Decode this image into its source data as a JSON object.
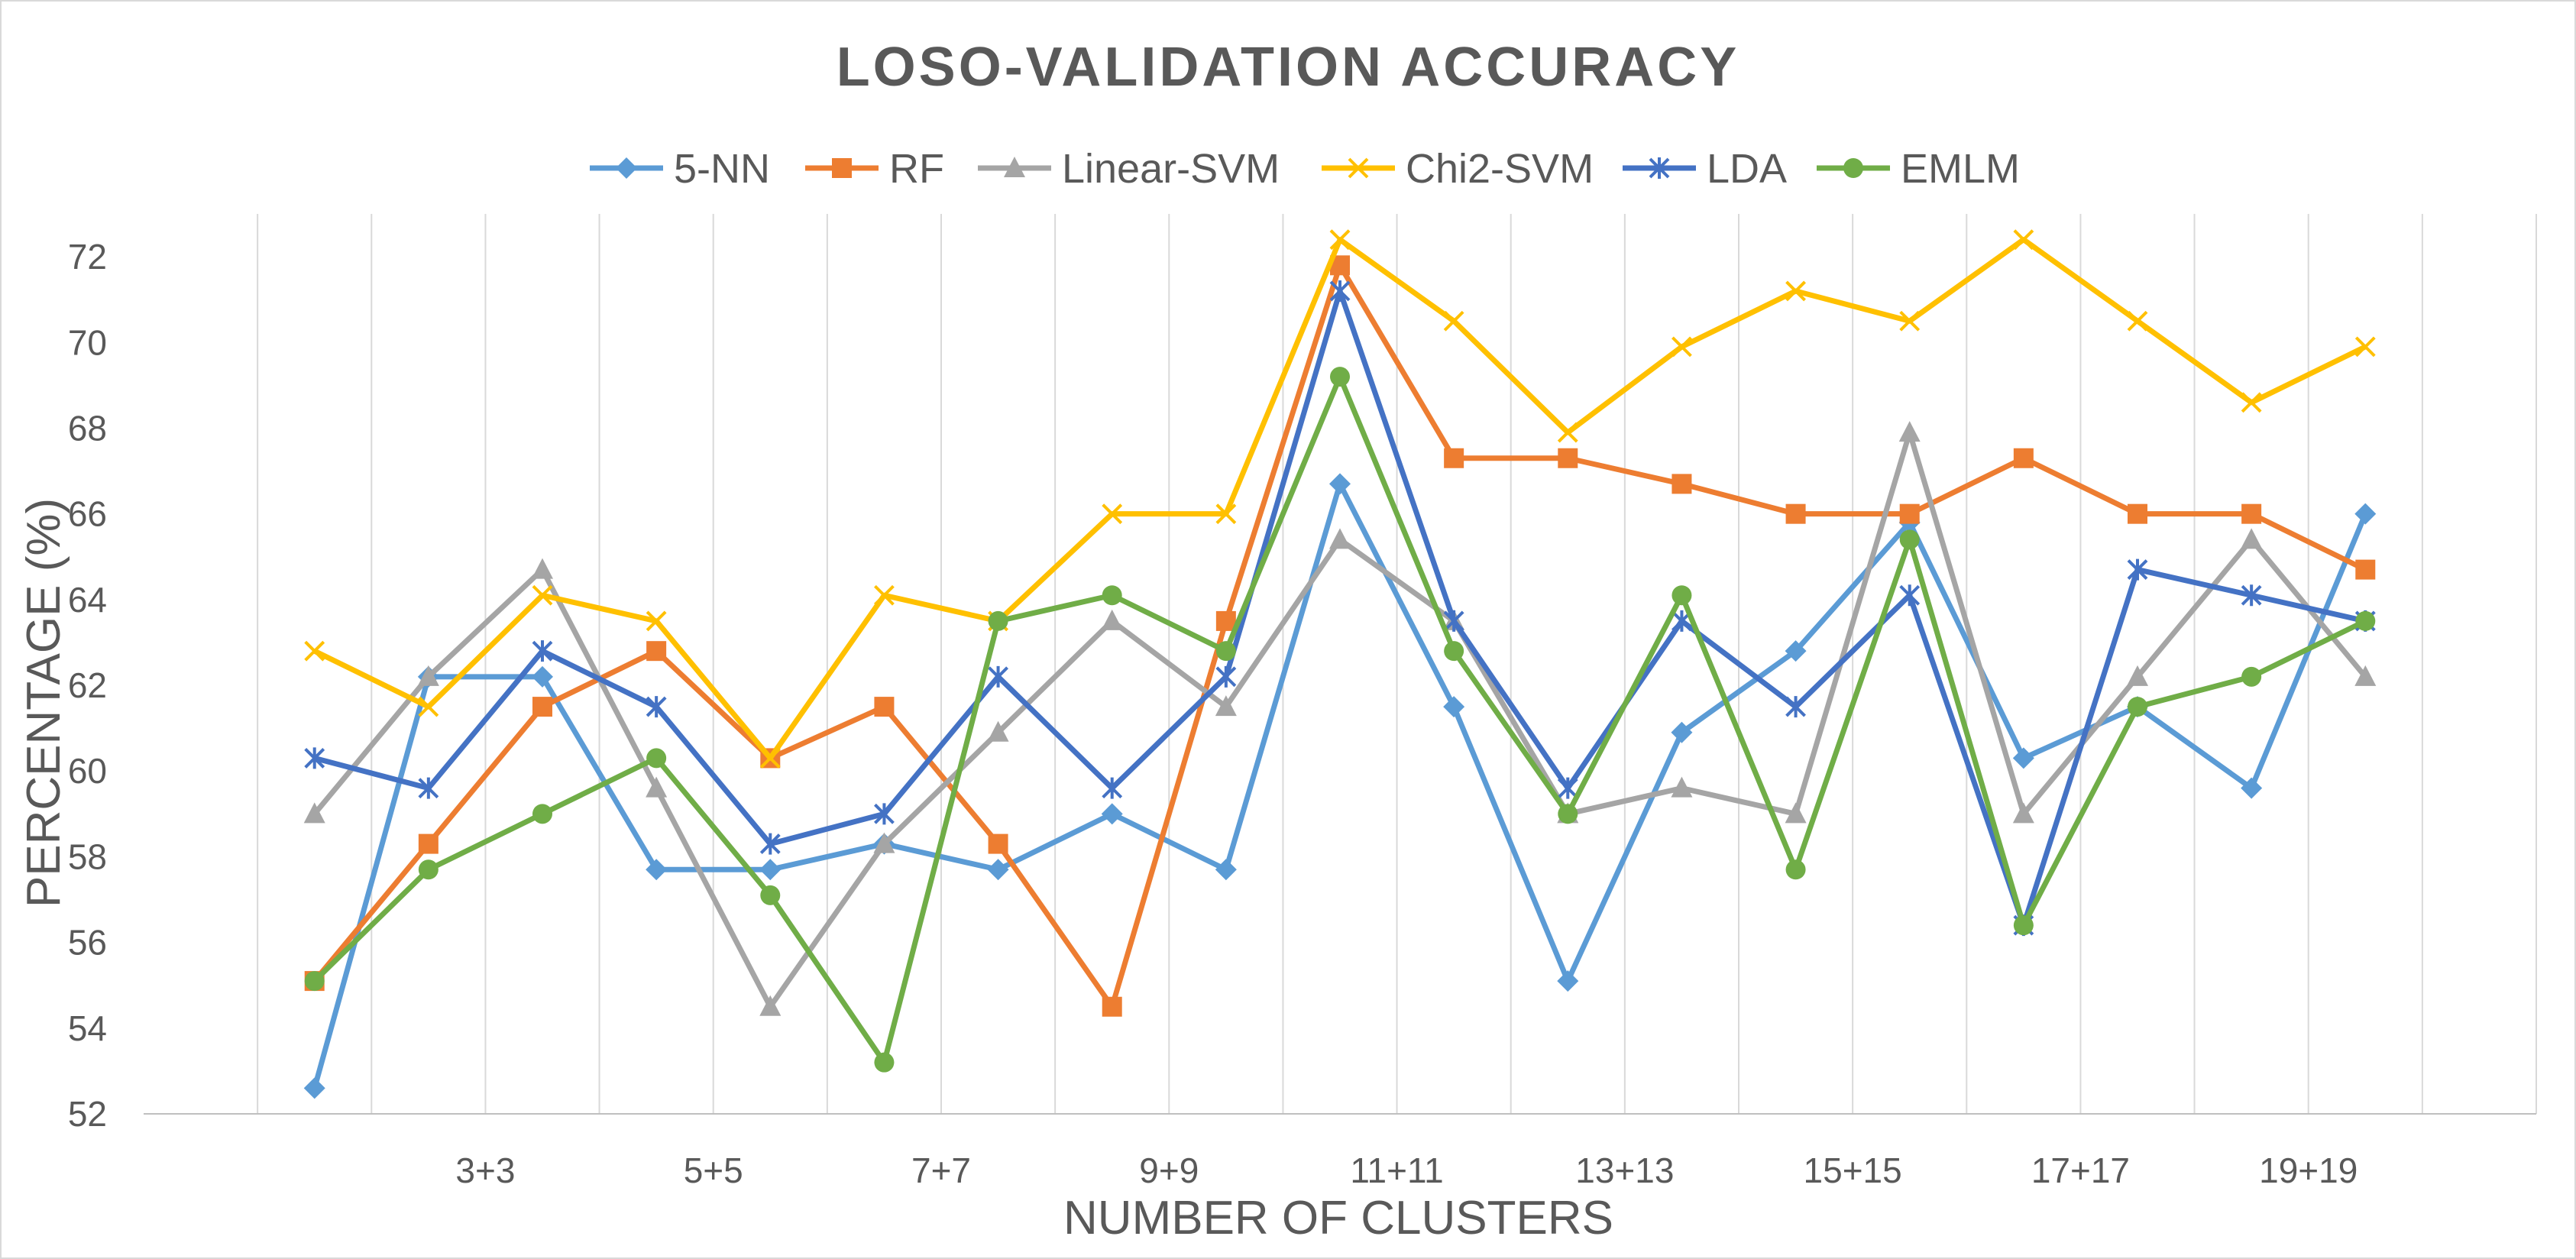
{
  "chart_data": {
    "type": "line",
    "title": "LOSO-VALIDATION ACCURACY",
    "xlabel": "NUMBER OF CLUSTERS",
    "ylabel": "PERCENTAGE (%)",
    "ylim": [
      52,
      73
    ],
    "yticks": [
      52,
      54,
      56,
      58,
      60,
      62,
      64,
      66,
      68,
      70,
      72
    ],
    "num_points": 19,
    "x_tick_labels": [
      "3+3",
      "5+5",
      "7+7",
      "9+9",
      "11+11",
      "13+13",
      "15+15",
      "17+17",
      "19+19"
    ],
    "legend_position": "top",
    "series": [
      {
        "name": "5-NN",
        "color": "#5B9BD5",
        "marker": "diamond",
        "values": [
          52.6,
          62.2,
          62.2,
          57.7,
          57.7,
          58.3,
          57.7,
          59.0,
          57.7,
          66.7,
          61.5,
          55.1,
          60.9,
          62.8,
          65.8,
          60.3,
          61.5,
          59.6,
          66.0
        ]
      },
      {
        "name": "RF",
        "color": "#ED7D31",
        "marker": "square",
        "values": [
          55.1,
          58.3,
          61.5,
          62.8,
          60.3,
          61.5,
          58.3,
          54.5,
          63.5,
          71.8,
          67.3,
          67.3,
          66.7,
          66.0,
          66.0,
          67.3,
          66.0,
          66.0,
          64.7
        ]
      },
      {
        "name": "Linear-SVM",
        "color": "#A5A5A5",
        "marker": "triangle",
        "values": [
          59.0,
          62.2,
          64.7,
          59.6,
          54.5,
          58.3,
          60.9,
          63.5,
          61.5,
          65.4,
          63.5,
          59.0,
          59.6,
          59.0,
          67.9,
          59.0,
          62.2,
          65.4,
          62.2
        ]
      },
      {
        "name": "Chi2-SVM",
        "color": "#FFC000",
        "marker": "x",
        "values": [
          62.8,
          61.5,
          64.1,
          63.5,
          60.3,
          64.1,
          63.5,
          66.0,
          66.0,
          72.4,
          70.5,
          67.9,
          69.9,
          71.2,
          70.5,
          72.4,
          70.5,
          68.6,
          69.9
        ]
      },
      {
        "name": "LDA",
        "color": "#4472C4",
        "marker": "star",
        "values": [
          60.3,
          59.6,
          62.8,
          61.5,
          58.3,
          59.0,
          62.2,
          59.6,
          62.2,
          71.2,
          63.5,
          59.6,
          63.5,
          61.5,
          64.1,
          56.4,
          64.7,
          64.1,
          63.5
        ]
      },
      {
        "name": "EMLM",
        "color": "#70AD47",
        "marker": "circle",
        "values": [
          55.1,
          57.7,
          59.0,
          60.3,
          57.1,
          53.2,
          63.5,
          64.1,
          62.8,
          69.2,
          62.8,
          59.0,
          64.1,
          57.7,
          65.4,
          56.4,
          61.5,
          62.2,
          63.5
        ]
      }
    ]
  }
}
